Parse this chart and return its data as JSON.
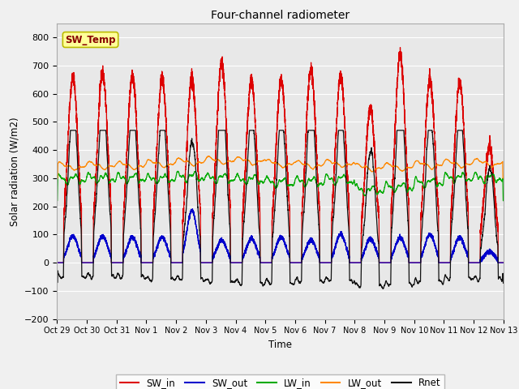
{
  "title": "Four-channel radiometer",
  "xlabel": "Time",
  "ylabel": "Solar radiation (W/m2)",
  "ylim": [
    -200,
    850
  ],
  "yticks": [
    -200,
    -100,
    0,
    100,
    200,
    300,
    400,
    500,
    600,
    700,
    800
  ],
  "xlim": [
    0,
    15
  ],
  "xtick_labels": [
    "Oct 29",
    "Oct 30",
    "Oct 31",
    "Nov 1",
    "Nov 2",
    "Nov 3",
    "Nov 4",
    "Nov 5",
    "Nov 6",
    "Nov 7",
    "Nov 8",
    "Nov 9",
    "Nov 10",
    "Nov 11",
    "Nov 12",
    "Nov 13"
  ],
  "xtick_positions": [
    0,
    1,
    2,
    3,
    4,
    5,
    6,
    7,
    8,
    9,
    10,
    11,
    12,
    13,
    14,
    15
  ],
  "colors": {
    "SW_in": "#dd0000",
    "SW_out": "#0000cc",
    "LW_in": "#00aa00",
    "LW_out": "#ff8800",
    "Rnet": "#111111"
  },
  "bg_color": "#e8e8e8",
  "fig_color": "#f0f0f0",
  "annotation_box_facecolor": "#ffff99",
  "annotation_box_edgecolor": "#bbbb00",
  "annotation_text_color": "#880000",
  "annotation_text": "SW_Temp",
  "legend_labels": [
    "SW_in",
    "SW_out",
    "LW_in",
    "LW_out",
    "Rnet"
  ],
  "SW_in_peaks": [
    660,
    675,
    660,
    655,
    650,
    710,
    645,
    650,
    685,
    660,
    545,
    740,
    650,
    640,
    410
  ],
  "SW_out_peaks": [
    95,
    95,
    90,
    90,
    185,
    80,
    85,
    90,
    80,
    100,
    85,
    90,
    100,
    90,
    40
  ],
  "LW_in_means": [
    295,
    300,
    300,
    298,
    305,
    300,
    295,
    285,
    288,
    295,
    258,
    268,
    285,
    302,
    300
  ],
  "LW_out_means": [
    340,
    345,
    345,
    352,
    358,
    363,
    362,
    352,
    348,
    352,
    338,
    340,
    348,
    352,
    352
  ],
  "Rnet_night_level": -55,
  "grid_color": "white",
  "linewidth": 0.9
}
